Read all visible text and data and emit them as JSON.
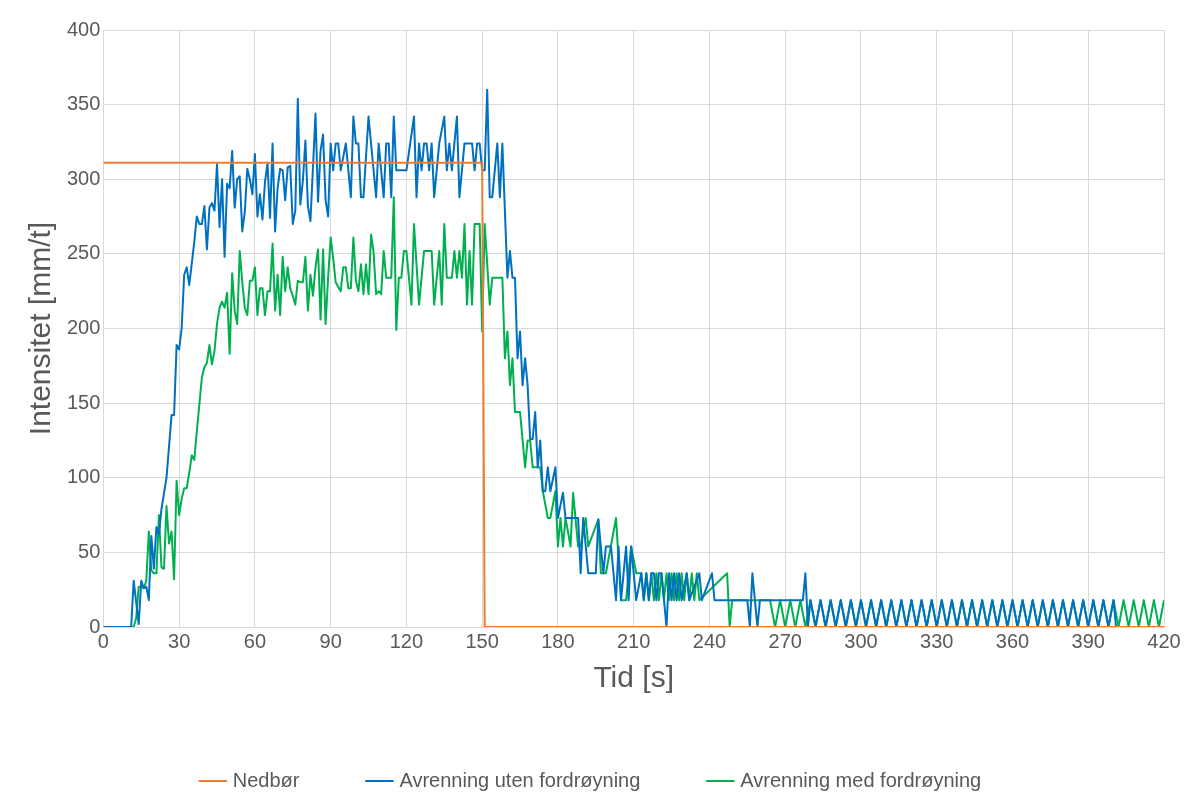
{
  "chart_data": {
    "type": "line",
    "xlabel": "Tid [s]",
    "ylabel": "Intensitet [mm/t]",
    "xlim": [
      0,
      420
    ],
    "xticks": [
      0,
      30,
      60,
      90,
      120,
      150,
      180,
      210,
      240,
      270,
      300,
      330,
      360,
      390,
      420
    ],
    "ylim": [
      0,
      400
    ],
    "yticks": [
      0,
      50,
      100,
      150,
      200,
      250,
      300,
      350,
      400
    ],
    "grid": true,
    "legend": "bottom",
    "marker": "none",
    "series": [
      {
        "name": "Nedbør",
        "color": "#ed7d31",
        "x": [
          0,
          150,
          151,
          420
        ],
        "values": [
          311,
          311,
          0,
          0
        ]
      },
      {
        "name": "Avrenning uten fordrøyning",
        "color": "#0070c0",
        "x": [
          0,
          11,
          12,
          14,
          15,
          16,
          17,
          18,
          19,
          20,
          21,
          22,
          23,
          25,
          27,
          28,
          29,
          30,
          31,
          32,
          33,
          34,
          36,
          37,
          38,
          39,
          40,
          41,
          42,
          43,
          44,
          45,
          46,
          47,
          48,
          49,
          50,
          51,
          52,
          53,
          54,
          55,
          56,
          57,
          58,
          59,
          60,
          61,
          62,
          63,
          64,
          65,
          66,
          67,
          68,
          69,
          70,
          71,
          72,
          73,
          74,
          75,
          76,
          77,
          78,
          79,
          80,
          81,
          82,
          84,
          85,
          86,
          87,
          88,
          89,
          90,
          91,
          92,
          93,
          94,
          96,
          98,
          99,
          100,
          101,
          102,
          103,
          105,
          106,
          108,
          109,
          111,
          112,
          113,
          114,
          115,
          116,
          120,
          123,
          124,
          125,
          126,
          127,
          128,
          129,
          130,
          131,
          132,
          133,
          135,
          136,
          137,
          138,
          140,
          141,
          143,
          146,
          147,
          148,
          149,
          150,
          151,
          152,
          153,
          154,
          156,
          157,
          158,
          160,
          161,
          162,
          163,
          164,
          165,
          166,
          167,
          168,
          169,
          170,
          171,
          172,
          173,
          174,
          175,
          176,
          177,
          179,
          180,
          182,
          183,
          188,
          189,
          190,
          192,
          195,
          196,
          198,
          199,
          201,
          202,
          203,
          204,
          205,
          207,
          208,
          209,
          210,
          211,
          213,
          214,
          215,
          216,
          217,
          218,
          219,
          220,
          221,
          222,
          223,
          224,
          225,
          226,
          227,
          228,
          229,
          231,
          232,
          236,
          237,
          241,
          242,
          255,
          256,
          257,
          258,
          259,
          260,
          277,
          278,
          279,
          280,
          282,
          284,
          286,
          288,
          290,
          292,
          294,
          296,
          298,
          300,
          302,
          304,
          306,
          308,
          310,
          312,
          314,
          316,
          318,
          320,
          322,
          324,
          326,
          328,
          330,
          332,
          334,
          336,
          338,
          340,
          342,
          344,
          346,
          348,
          350,
          352,
          354,
          356,
          358,
          360,
          362,
          364,
          366,
          368,
          370,
          372,
          374,
          376,
          378,
          380,
          382,
          384,
          386,
          388,
          390,
          392,
          394,
          396,
          398,
          400,
          401
        ],
        "values": [
          0,
          0,
          31,
          2,
          31,
          26,
          27,
          18,
          61,
          39,
          67,
          62,
          79,
          100,
          142,
          142,
          189,
          186,
          200,
          236,
          241,
          229,
          258,
          275,
          270,
          270,
          282,
          253,
          281,
          284,
          279,
          310,
          268,
          300,
          248,
          297,
          294,
          319,
          281,
          300,
          302,
          265,
          278,
          307,
          300,
          290,
          317,
          275,
          290,
          273,
          298,
          311,
          274,
          324,
          265,
          294,
          307,
          306,
          286,
          308,
          309,
          270,
          279,
          354,
          283,
          299,
          326,
          282,
          272,
          344,
          285,
          319,
          330,
          286,
          275,
          324,
          306,
          324,
          324,
          306,
          324,
          288,
          342,
          324,
          324,
          288,
          288,
          342,
          324,
          288,
          324,
          288,
          324,
          324,
          288,
          342,
          306,
          306,
          342,
          288,
          324,
          306,
          324,
          324,
          306,
          324,
          288,
          306,
          324,
          342,
          306,
          324,
          306,
          342,
          288,
          324,
          324,
          306,
          324,
          324,
          306,
          306,
          360,
          288,
          288,
          324,
          288,
          324,
          234,
          252,
          234,
          234,
          180,
          198,
          162,
          180,
          162,
          126,
          126,
          144,
          107,
          125,
          91,
          91,
          107,
          91,
          107,
          73,
          90,
          73,
          73,
          36,
          73,
          36,
          36,
          72,
          36,
          54,
          54,
          36,
          18,
          54,
          18,
          54,
          18,
          54,
          36,
          18,
          36,
          18,
          36,
          18,
          36,
          36,
          18,
          36,
          36,
          18,
          0,
          36,
          18,
          36,
          18,
          36,
          18,
          36,
          18,
          36,
          18,
          36,
          18,
          18,
          0,
          36,
          18,
          0,
          18,
          18,
          36,
          0,
          18,
          0,
          18,
          0,
          18,
          0,
          18,
          0,
          18,
          0,
          18,
          0,
          18,
          0,
          18,
          0,
          18,
          0,
          18,
          0,
          18,
          0,
          18,
          0,
          18,
          0,
          18,
          0,
          18,
          0,
          18,
          0,
          18,
          0,
          18,
          0,
          18,
          0,
          18,
          0,
          18,
          0,
          18,
          0,
          18,
          0,
          18,
          0,
          18,
          0,
          18,
          0,
          18,
          0,
          18,
          0,
          18,
          0,
          18,
          0,
          18,
          0
        ]
      },
      {
        "name": "Avrenning med fordrøyning",
        "color": "#00b050",
        "x": [
          0,
          12,
          13,
          14,
          15,
          16,
          17,
          18,
          19,
          20,
          21,
          22,
          23,
          24,
          25,
          26,
          27,
          28,
          29,
          30,
          31,
          32,
          33,
          34,
          35,
          36,
          37,
          39,
          40,
          41,
          42,
          43,
          44,
          45,
          46,
          47,
          48,
          49,
          50,
          51,
          52,
          53,
          54,
          55,
          56,
          57,
          58,
          59,
          60,
          61,
          62,
          63,
          64,
          65,
          66,
          67,
          68,
          69,
          70,
          71,
          72,
          73,
          74,
          75,
          76,
          77,
          78,
          79,
          80,
          81,
          82,
          83,
          84,
          85,
          86,
          87,
          88,
          89,
          90,
          91,
          92,
          94,
          95,
          96,
          97,
          98,
          99,
          100,
          101,
          102,
          103,
          104,
          105,
          106,
          107,
          108,
          109,
          110,
          111,
          112,
          114,
          115,
          116,
          117,
          118,
          119,
          120,
          122,
          123,
          125,
          127,
          130,
          131,
          133,
          134,
          135,
          136,
          138,
          139,
          140,
          141,
          142,
          143,
          144,
          145,
          146,
          147,
          149,
          150,
          151,
          153,
          154,
          158,
          159,
          160,
          161,
          162,
          163,
          165,
          167,
          168,
          169,
          170,
          173,
          174,
          176,
          177,
          179,
          180,
          181,
          182,
          183,
          185,
          186,
          188,
          189,
          191,
          192,
          196,
          197,
          199,
          203,
          205,
          207,
          209,
          211,
          213,
          214,
          215,
          216,
          217,
          218,
          219,
          220,
          221,
          222,
          223,
          224,
          225,
          226,
          227,
          228,
          229,
          230,
          231,
          232,
          233,
          234,
          235,
          236,
          247,
          248,
          249,
          264,
          266,
          268,
          270,
          272,
          274,
          276,
          278,
          280,
          282,
          284,
          286,
          288,
          290,
          292,
          294,
          296,
          298,
          300,
          302,
          304,
          306,
          308,
          310,
          312,
          314,
          316,
          318,
          320,
          322,
          324,
          326,
          328,
          330,
          332,
          334,
          336,
          338,
          340,
          342,
          344,
          346,
          348,
          350,
          352,
          354,
          356,
          358,
          360,
          362,
          364,
          366,
          368,
          370,
          372,
          374,
          376,
          378,
          380,
          382,
          384,
          386,
          388,
          390,
          392,
          394,
          396,
          398,
          400,
          402,
          404,
          406,
          408,
          410,
          412,
          414,
          416,
          418,
          420
        ],
        "values": [
          0,
          0,
          6,
          27,
          27,
          26,
          31,
          64,
          38,
          36,
          36,
          75,
          40,
          39,
          81,
          56,
          64,
          32,
          98,
          75,
          86,
          93,
          93,
          103,
          115,
          112,
          131,
          167,
          174,
          177,
          189,
          176,
          185,
          203,
          214,
          218,
          214,
          224,
          183,
          237,
          212,
          203,
          252,
          231,
          214,
          209,
          232,
          232,
          241,
          209,
          227,
          227,
          209,
          225,
          225,
          257,
          212,
          236,
          209,
          248,
          225,
          241,
          227,
          222,
          216,
          232,
          231,
          231,
          248,
          212,
          236,
          222,
          241,
          253,
          206,
          253,
          203,
          234,
          261,
          247,
          231,
          225,
          241,
          241,
          227,
          227,
          261,
          232,
          225,
          243,
          223,
          243,
          223,
          263,
          251,
          223,
          225,
          223,
          252,
          234,
          234,
          288,
          199,
          234,
          234,
          252,
          252,
          216,
          270,
          216,
          252,
          252,
          216,
          252,
          216,
          270,
          234,
          234,
          252,
          234,
          252,
          234,
          270,
          216,
          252,
          216,
          270,
          270,
          198,
          270,
          216,
          234,
          234,
          180,
          198,
          162,
          180,
          144,
          144,
          107,
          125,
          125,
          107,
          107,
          91,
          73,
          73,
          91,
          54,
          73,
          54,
          73,
          54,
          90,
          54,
          54,
          73,
          54,
          72,
          36,
          36,
          73,
          18,
          18,
          54,
          36,
          36,
          18,
          36,
          18,
          36,
          18,
          36,
          18,
          36,
          18,
          36,
          18,
          36,
          18,
          36,
          18,
          36,
          18,
          36,
          18,
          36,
          18,
          36,
          18,
          36,
          0,
          18,
          18,
          0,
          18,
          0,
          18,
          0,
          18,
          0,
          18,
          0,
          18,
          0,
          18,
          0,
          18,
          0,
          18,
          0,
          18,
          0,
          18,
          0,
          18,
          0,
          18,
          0,
          18,
          0,
          18,
          0,
          18,
          0,
          18,
          0,
          18,
          0,
          18,
          0,
          18,
          0,
          18,
          0,
          18,
          0,
          18,
          0,
          18,
          0,
          18,
          0,
          18,
          0,
          18,
          0,
          18,
          0,
          18,
          0,
          18,
          0,
          18,
          0,
          18,
          0,
          18,
          0,
          18,
          0,
          18,
          0,
          18,
          0,
          18,
          0,
          18,
          0,
          18,
          0,
          18
        ]
      }
    ]
  }
}
